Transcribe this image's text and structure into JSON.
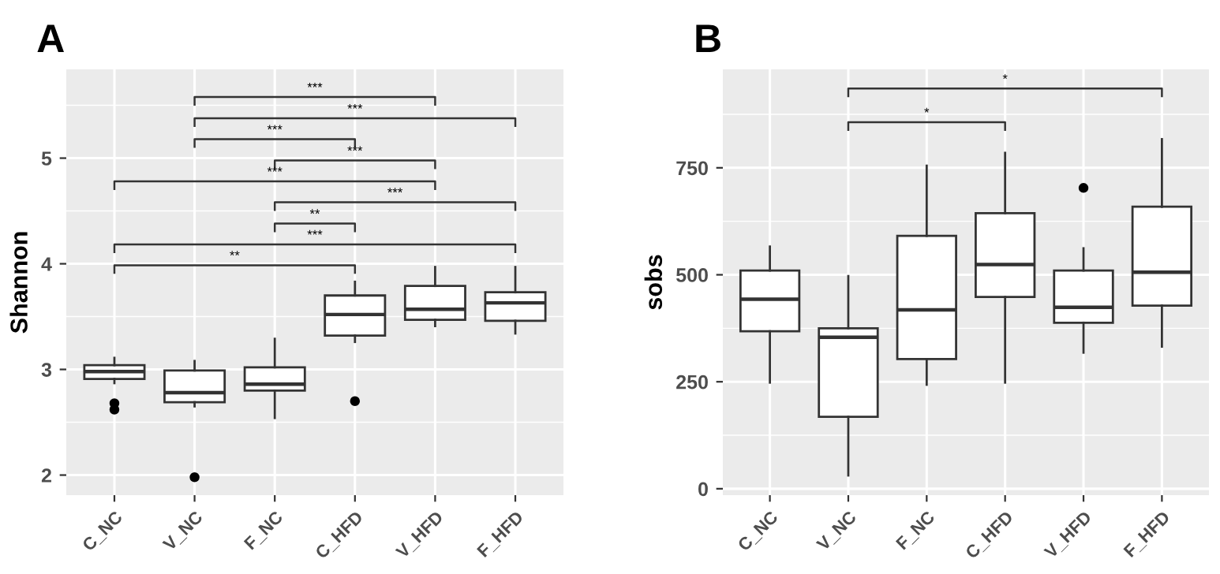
{
  "chart_data": [
    {
      "type": "box",
      "title": "A",
      "ylabel": "Shannon",
      "categories": [
        "C_NC",
        "V_NC",
        "F_NC",
        "C_HFD",
        "V_HFD",
        "F_HFD"
      ],
      "ylim": [
        1.81,
        5.84
      ],
      "yticks": [
        2,
        3,
        4,
        5
      ],
      "grid": true,
      "boxes": [
        {
          "low": 2.87,
          "q1": 2.91,
          "median": 2.98,
          "q3": 3.04,
          "high": 3.11,
          "outliers": [
            2.68,
            2.62
          ]
        },
        {
          "low": 2.65,
          "q1": 2.69,
          "median": 2.78,
          "q3": 2.99,
          "high": 3.08,
          "outliers": [
            1.98
          ]
        },
        {
          "low": 2.54,
          "q1": 2.8,
          "median": 2.86,
          "q3": 3.02,
          "high": 3.29
        },
        {
          "low": 3.26,
          "q1": 3.32,
          "median": 3.52,
          "q3": 3.7,
          "high": 3.83,
          "outliers": [
            2.7
          ]
        },
        {
          "low": 3.41,
          "q1": 3.47,
          "median": 3.57,
          "q3": 3.79,
          "high": 3.97
        },
        {
          "low": 3.34,
          "q1": 3.46,
          "median": 3.63,
          "q3": 3.73,
          "high": 3.97
        }
      ],
      "annotations": [
        "***",
        "***",
        "***",
        "***",
        "***",
        "***",
        "**",
        "***",
        "**"
      ]
    },
    {
      "type": "box",
      "title": "B",
      "ylabel": "sobs",
      "categories": [
        "C_NC",
        "V_NC",
        "F_NC",
        "C_HFD",
        "V_HFD",
        "F_HFD"
      ],
      "ylim": [
        -15,
        980
      ],
      "yticks": [
        0,
        250,
        500,
        750
      ],
      "grid": true,
      "boxes": [
        {
          "low": 248,
          "q1": 368,
          "median": 443,
          "q3": 510,
          "high": 566
        },
        {
          "low": 31,
          "q1": 168,
          "median": 354,
          "q3": 375,
          "high": 497
        },
        {
          "low": 243,
          "q1": 303,
          "median": 418,
          "q3": 591,
          "high": 755
        },
        {
          "low": 248,
          "q1": 448,
          "median": 524,
          "q3": 644,
          "high": 785
        },
        {
          "low": 318,
          "q1": 388,
          "median": 424,
          "q3": 510,
          "high": 562,
          "outliers": [
            703
          ]
        },
        {
          "low": 332,
          "q1": 428,
          "median": 506,
          "q3": 659,
          "high": 817
        }
      ],
      "annotations": [
        "*",
        "*"
      ]
    }
  ]
}
